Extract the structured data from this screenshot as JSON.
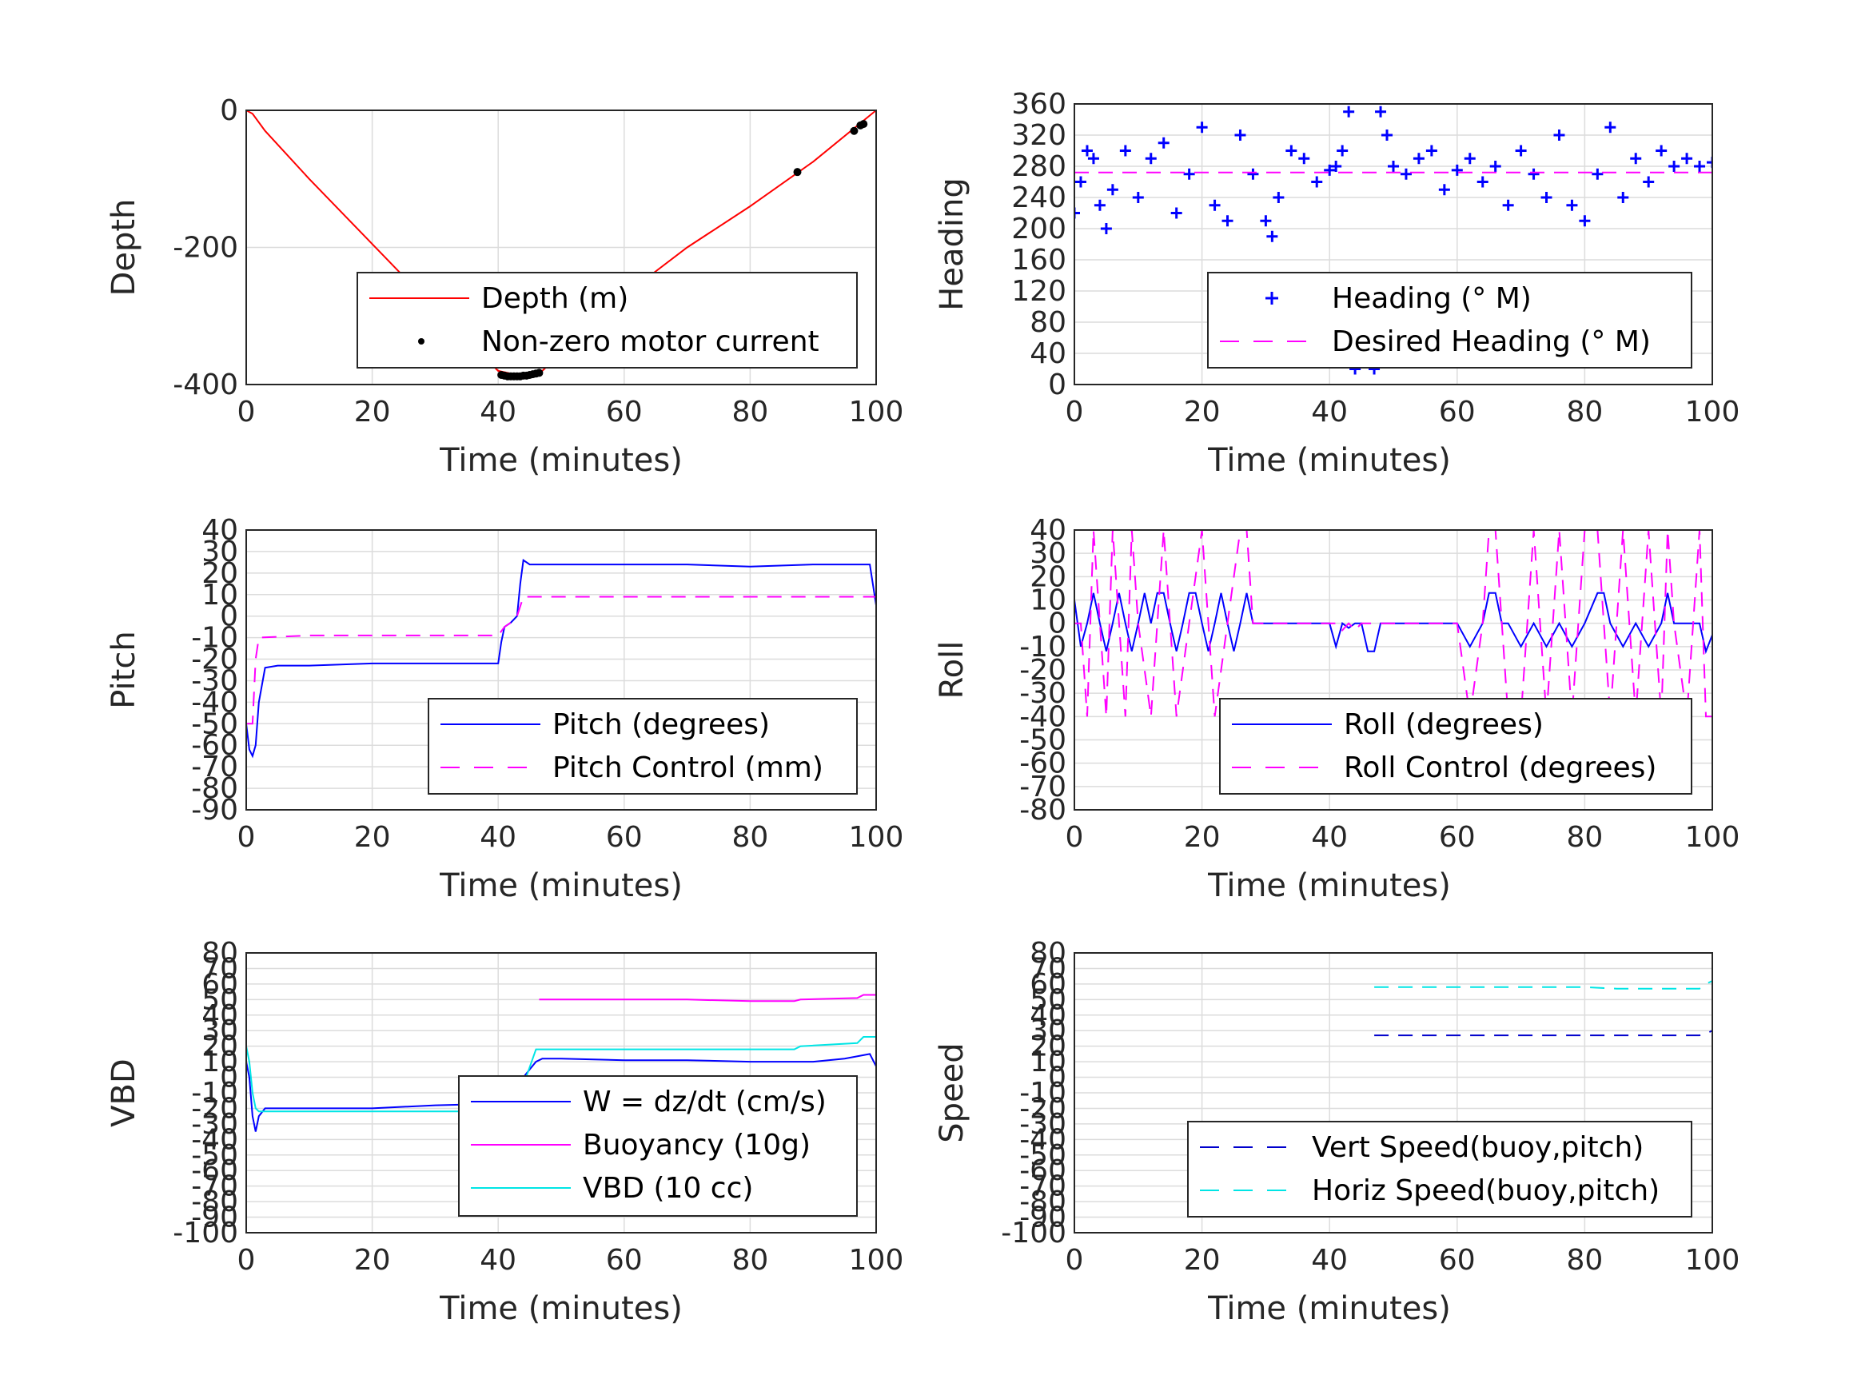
{
  "chart_data": [
    {
      "type": "line",
      "xlabel": "Time (minutes)",
      "ylabel": "Depth",
      "xlim": [
        0,
        100
      ],
      "ylim": [
        -400,
        0
      ],
      "xticks": [
        "0",
        "20",
        "40",
        "60",
        "80",
        "100"
      ],
      "yticks": [
        "0",
        "-200",
        "-400"
      ],
      "legend": "bottom-right",
      "series": [
        {
          "name": "Depth (m)",
          "color": "#ff0000",
          "style": "solid",
          "x": [
            0,
            1,
            3,
            10,
            20,
            30,
            40,
            44,
            47,
            60,
            70,
            80,
            90,
            100
          ],
          "y": [
            0,
            -5,
            -30,
            -100,
            -195,
            -290,
            -380,
            -388,
            -380,
            -270,
            -200,
            -140,
            -75,
            0
          ]
        },
        {
          "name": "Non-zero motor current",
          "color": "#000000",
          "style": "marker",
          "x": [
            40.5,
            41,
            41.5,
            42,
            42.5,
            43,
            43.5,
            44,
            44.5,
            45,
            45.5,
            46,
            46.5,
            87.5,
            96.5,
            97.5,
            98
          ],
          "y": [
            -386,
            -387,
            -388,
            -388,
            -388,
            -388,
            -388,
            -387,
            -387,
            -386,
            -385,
            -384,
            -383,
            -90,
            -30,
            -22,
            -20
          ]
        }
      ]
    },
    {
      "type": "scatter",
      "xlabel": "Time (minutes)",
      "ylabel": "Heading",
      "xlim": [
        0,
        100
      ],
      "ylim": [
        0,
        360
      ],
      "xticks": [
        "0",
        "20",
        "40",
        "60",
        "80",
        "100"
      ],
      "yticks": [
        "0",
        "40",
        "80",
        "120",
        "160",
        "200",
        "240",
        "280",
        "320",
        "360"
      ],
      "legend": "bottom-right",
      "series": [
        {
          "name": "Heading (° M)",
          "color": "#0000ff",
          "style": "plus",
          "x": [
            0,
            1,
            2,
            3,
            4,
            5,
            6,
            8,
            10,
            12,
            14,
            16,
            18,
            20,
            22,
            24,
            26,
            28,
            30,
            31,
            32,
            34,
            36,
            38,
            40,
            41,
            42,
            43,
            44,
            45,
            46,
            47,
            48,
            49,
            50,
            52,
            54,
            56,
            58,
            60,
            62,
            64,
            66,
            68,
            70,
            72,
            74,
            76,
            78,
            80,
            82,
            84,
            86,
            88,
            90,
            92,
            94,
            96,
            98,
            100
          ],
          "y": [
            220,
            260,
            300,
            290,
            230,
            200,
            250,
            300,
            240,
            290,
            310,
            220,
            270,
            330,
            230,
            210,
            320,
            270,
            210,
            190,
            240,
            300,
            290,
            260,
            275,
            280,
            300,
            350,
            20,
            100,
            60,
            20,
            350,
            320,
            280,
            270,
            290,
            300,
            250,
            275,
            290,
            260,
            280,
            230,
            300,
            270,
            240,
            320,
            230,
            210,
            270,
            330,
            240,
            290,
            260,
            300,
            280,
            290,
            280,
            285
          ]
        },
        {
          "name": "Desired Heading (° M)",
          "color": "#ff00ff",
          "style": "dashed",
          "x": [
            0,
            100
          ],
          "y": [
            272,
            272
          ]
        }
      ]
    },
    {
      "type": "line",
      "xlabel": "Time (minutes)",
      "ylabel": "Pitch",
      "xlim": [
        0,
        100
      ],
      "ylim": [
        -90,
        40
      ],
      "xticks": [
        "0",
        "20",
        "40",
        "60",
        "80",
        "100"
      ],
      "yticks": [
        "40",
        "30",
        "20",
        "10",
        "0",
        "-10",
        "-20",
        "-30",
        "-40",
        "-50",
        "-60",
        "-70",
        "-80",
        "-90"
      ],
      "legend": "bottom-right",
      "series": [
        {
          "name": "Pitch (degrees)",
          "color": "#0000ff",
          "style": "solid",
          "x": [
            0,
            0.5,
            1,
            1.5,
            2,
            3,
            5,
            10,
            20,
            30,
            40,
            40.5,
            41,
            42,
            43,
            43.5,
            44,
            45,
            50,
            60,
            70,
            80,
            90,
            99,
            100
          ],
          "y": [
            -50,
            -62,
            -65,
            -60,
            -40,
            -24,
            -23,
            -23,
            -22,
            -22,
            -22,
            -12,
            -5,
            -3,
            0,
            15,
            26,
            24,
            24,
            24,
            24,
            23,
            24,
            24,
            5
          ]
        },
        {
          "name": "Pitch Control (mm)",
          "color": "#ff00ff",
          "style": "dashed",
          "x": [
            0,
            1,
            1.5,
            2,
            10,
            20,
            30,
            40,
            41,
            42,
            43,
            44,
            45,
            50,
            60,
            70,
            80,
            90,
            100
          ],
          "y": [
            -50,
            -50,
            -20,
            -10,
            -9,
            -9,
            -9,
            -9,
            -5,
            -3,
            0,
            9,
            9,
            9,
            9,
            9,
            9,
            9,
            9
          ]
        }
      ]
    },
    {
      "type": "line",
      "xlabel": "Time (minutes)",
      "ylabel": "Roll",
      "xlim": [
        0,
        100
      ],
      "ylim": [
        -80,
        40
      ],
      "xticks": [
        "0",
        "20",
        "40",
        "60",
        "80",
        "100"
      ],
      "yticks": [
        "40",
        "30",
        "20",
        "10",
        "0",
        "-10",
        "-20",
        "-30",
        "-40",
        "-50",
        "-60",
        "-70",
        "-80"
      ],
      "legend": "bottom-right",
      "series": [
        {
          "name": "Roll (degrees)",
          "color": "#0000ff",
          "style": "solid",
          "x": [
            0,
            1,
            2,
            3,
            4,
            5,
            6,
            7,
            8,
            9,
            10,
            11,
            12,
            13,
            14,
            15,
            16,
            17,
            18,
            19,
            20,
            21,
            22,
            23,
            24,
            25,
            26,
            27,
            28,
            29,
            30,
            35,
            40,
            41,
            42,
            43,
            44,
            45,
            46,
            47,
            48,
            50,
            55,
            60,
            62,
            64,
            65,
            66,
            67,
            68,
            70,
            72,
            74,
            76,
            78,
            80,
            82,
            83,
            84,
            86,
            88,
            90,
            92,
            93,
            94,
            96,
            98,
            99,
            100
          ],
          "y": [
            10,
            -10,
            0,
            13,
            0,
            -12,
            0,
            13,
            0,
            -12,
            0,
            13,
            0,
            13,
            13,
            0,
            -12,
            0,
            13,
            13,
            0,
            -12,
            0,
            13,
            0,
            -12,
            0,
            13,
            0,
            0,
            0,
            0,
            0,
            -10,
            0,
            -2,
            0,
            0,
            -12,
            -12,
            0,
            0,
            0,
            0,
            -10,
            0,
            13,
            13,
            0,
            0,
            -10,
            0,
            -10,
            0,
            -10,
            0,
            13,
            13,
            0,
            -10,
            0,
            -10,
            0,
            13,
            0,
            0,
            0,
            -12,
            -5
          ]
        },
        {
          "name": "Roll Control (degrees)",
          "color": "#ff00ff",
          "style": "dashed",
          "x": [
            0,
            1,
            2,
            3,
            4,
            5,
            6,
            7,
            8,
            9,
            10,
            12,
            14,
            16,
            18,
            20,
            22,
            24,
            26,
            27,
            28,
            30,
            35,
            40,
            41,
            42,
            43,
            44,
            45,
            50,
            55,
            60,
            62,
            64,
            65,
            66,
            67,
            68,
            70,
            72,
            74,
            76,
            78,
            80,
            82,
            83,
            84,
            86,
            88,
            90,
            92,
            93,
            94,
            96,
            98,
            99,
            100
          ],
          "y": [
            0,
            0,
            -40,
            40,
            0,
            -40,
            40,
            0,
            -40,
            40,
            0,
            -40,
            40,
            -40,
            0,
            40,
            -40,
            0,
            40,
            40,
            0,
            0,
            0,
            0,
            0,
            -3,
            0,
            -3,
            0,
            0,
            0,
            0,
            -40,
            0,
            40,
            40,
            0,
            -40,
            -40,
            40,
            -40,
            40,
            -40,
            40,
            40,
            0,
            -40,
            40,
            -40,
            40,
            -40,
            40,
            0,
            -40,
            40,
            -40,
            -40
          ]
        }
      ]
    },
    {
      "type": "line",
      "xlabel": "Time (minutes)",
      "ylabel": "VBD",
      "xlim": [
        0,
        100
      ],
      "ylim": [
        -100,
        80
      ],
      "xticks": [
        "0",
        "20",
        "40",
        "60",
        "80",
        "100"
      ],
      "yticks": [
        "80",
        "70",
        "60",
        "50",
        "40",
        "30",
        "20",
        "10",
        "0",
        "-10",
        "-20",
        "-30",
        "-40",
        "-50",
        "-60",
        "-70",
        "-80",
        "-90",
        "-100"
      ],
      "legend": "bottom-right",
      "series": [
        {
          "name": "W = dz/dt (cm/s)",
          "color": "#0000ff",
          "style": "solid",
          "x": [
            0,
            0.5,
            1,
            1.5,
            2,
            3,
            5,
            10,
            20,
            30,
            40,
            41,
            42,
            43,
            44,
            45,
            46,
            47,
            50,
            60,
            70,
            80,
            90,
            95,
            99,
            100
          ],
          "y": [
            10,
            0,
            -25,
            -35,
            -25,
            -20,
            -20,
            -20,
            -20,
            -18,
            -17,
            -15,
            -10,
            -5,
            0,
            5,
            10,
            12,
            12,
            11,
            11,
            10,
            10,
            12,
            15,
            7
          ]
        },
        {
          "name": "Buoyancy (10g)",
          "color": "#ff00ff",
          "style": "solid",
          "x": [
            46.5,
            50,
            60,
            70,
            80,
            87,
            88,
            97,
            98,
            100
          ],
          "y": [
            50,
            50,
            50,
            50,
            49,
            49,
            50,
            51,
            53,
            53
          ]
        },
        {
          "name": "VBD (10 cc)",
          "color": "#00e5e5",
          "style": "solid",
          "x": [
            0,
            0.5,
            1,
            1.5,
            2,
            3,
            5,
            10,
            20,
            30,
            40,
            42,
            44,
            46,
            50,
            60,
            70,
            80,
            87,
            88,
            97,
            98,
            100
          ],
          "y": [
            20,
            10,
            -10,
            -20,
            -22,
            -22,
            -22,
            -22,
            -22,
            -22,
            -22,
            -15,
            -5,
            18,
            18,
            18,
            18,
            18,
            18,
            20,
            22,
            26,
            26
          ]
        }
      ]
    },
    {
      "type": "line",
      "xlabel": "Time (minutes)",
      "ylabel": "Speed",
      "xlim": [
        0,
        100
      ],
      "ylim": [
        -100,
        80
      ],
      "xticks": [
        "0",
        "20",
        "40",
        "60",
        "80",
        "100"
      ],
      "yticks": [
        "80",
        "70",
        "60",
        "50",
        "40",
        "30",
        "20",
        "10",
        "0",
        "-10",
        "-20",
        "-30",
        "-40",
        "-50",
        "-60",
        "-70",
        "-80",
        "-90",
        "-100"
      ],
      "legend": "bottom-right",
      "series": [
        {
          "name": "Vert Speed(buoy,pitch)",
          "color": "#0000cc",
          "style": "dashed",
          "x": [
            47,
            50,
            55,
            60,
            65,
            70,
            75,
            80,
            85,
            90,
            95,
            98,
            99,
            100
          ],
          "y": [
            27,
            27,
            27,
            27,
            27,
            27,
            27,
            27,
            27,
            27,
            27,
            27,
            28,
            30
          ]
        },
        {
          "name": "Horiz Speed(buoy,pitch)",
          "color": "#00e5e5",
          "style": "dashed",
          "x": [
            47,
            50,
            55,
            60,
            65,
            70,
            75,
            80,
            85,
            90,
            95,
            98,
            99,
            100
          ],
          "y": [
            58,
            58,
            58,
            58,
            58,
            58,
            58,
            58,
            57,
            57,
            57,
            57,
            60,
            62
          ]
        }
      ]
    }
  ]
}
